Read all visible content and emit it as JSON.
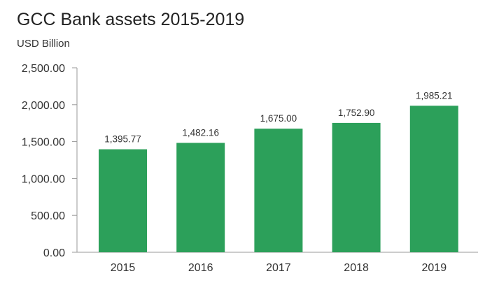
{
  "chart_data": {
    "type": "bar",
    "title": "GCC Bank assets 2015-2019",
    "subtitle": "USD Billion",
    "xlabel": "",
    "ylabel": "",
    "categories": [
      "2015",
      "2016",
      "2017",
      "2018",
      "2019"
    ],
    "values": [
      1395.77,
      1482.16,
      1675.0,
      1752.9,
      1985.21
    ],
    "data_labels": [
      "1,395.77",
      "1,482.16",
      "1,675.00",
      "1,752.90",
      "1,985.21"
    ],
    "ylim": [
      0,
      2500
    ],
    "yticks": [
      "0.00",
      "500.00",
      "1,000.00",
      "1,500.00",
      "2,000.00",
      "2,500.00"
    ],
    "grid": false,
    "bar_color": "#2ca05a"
  }
}
